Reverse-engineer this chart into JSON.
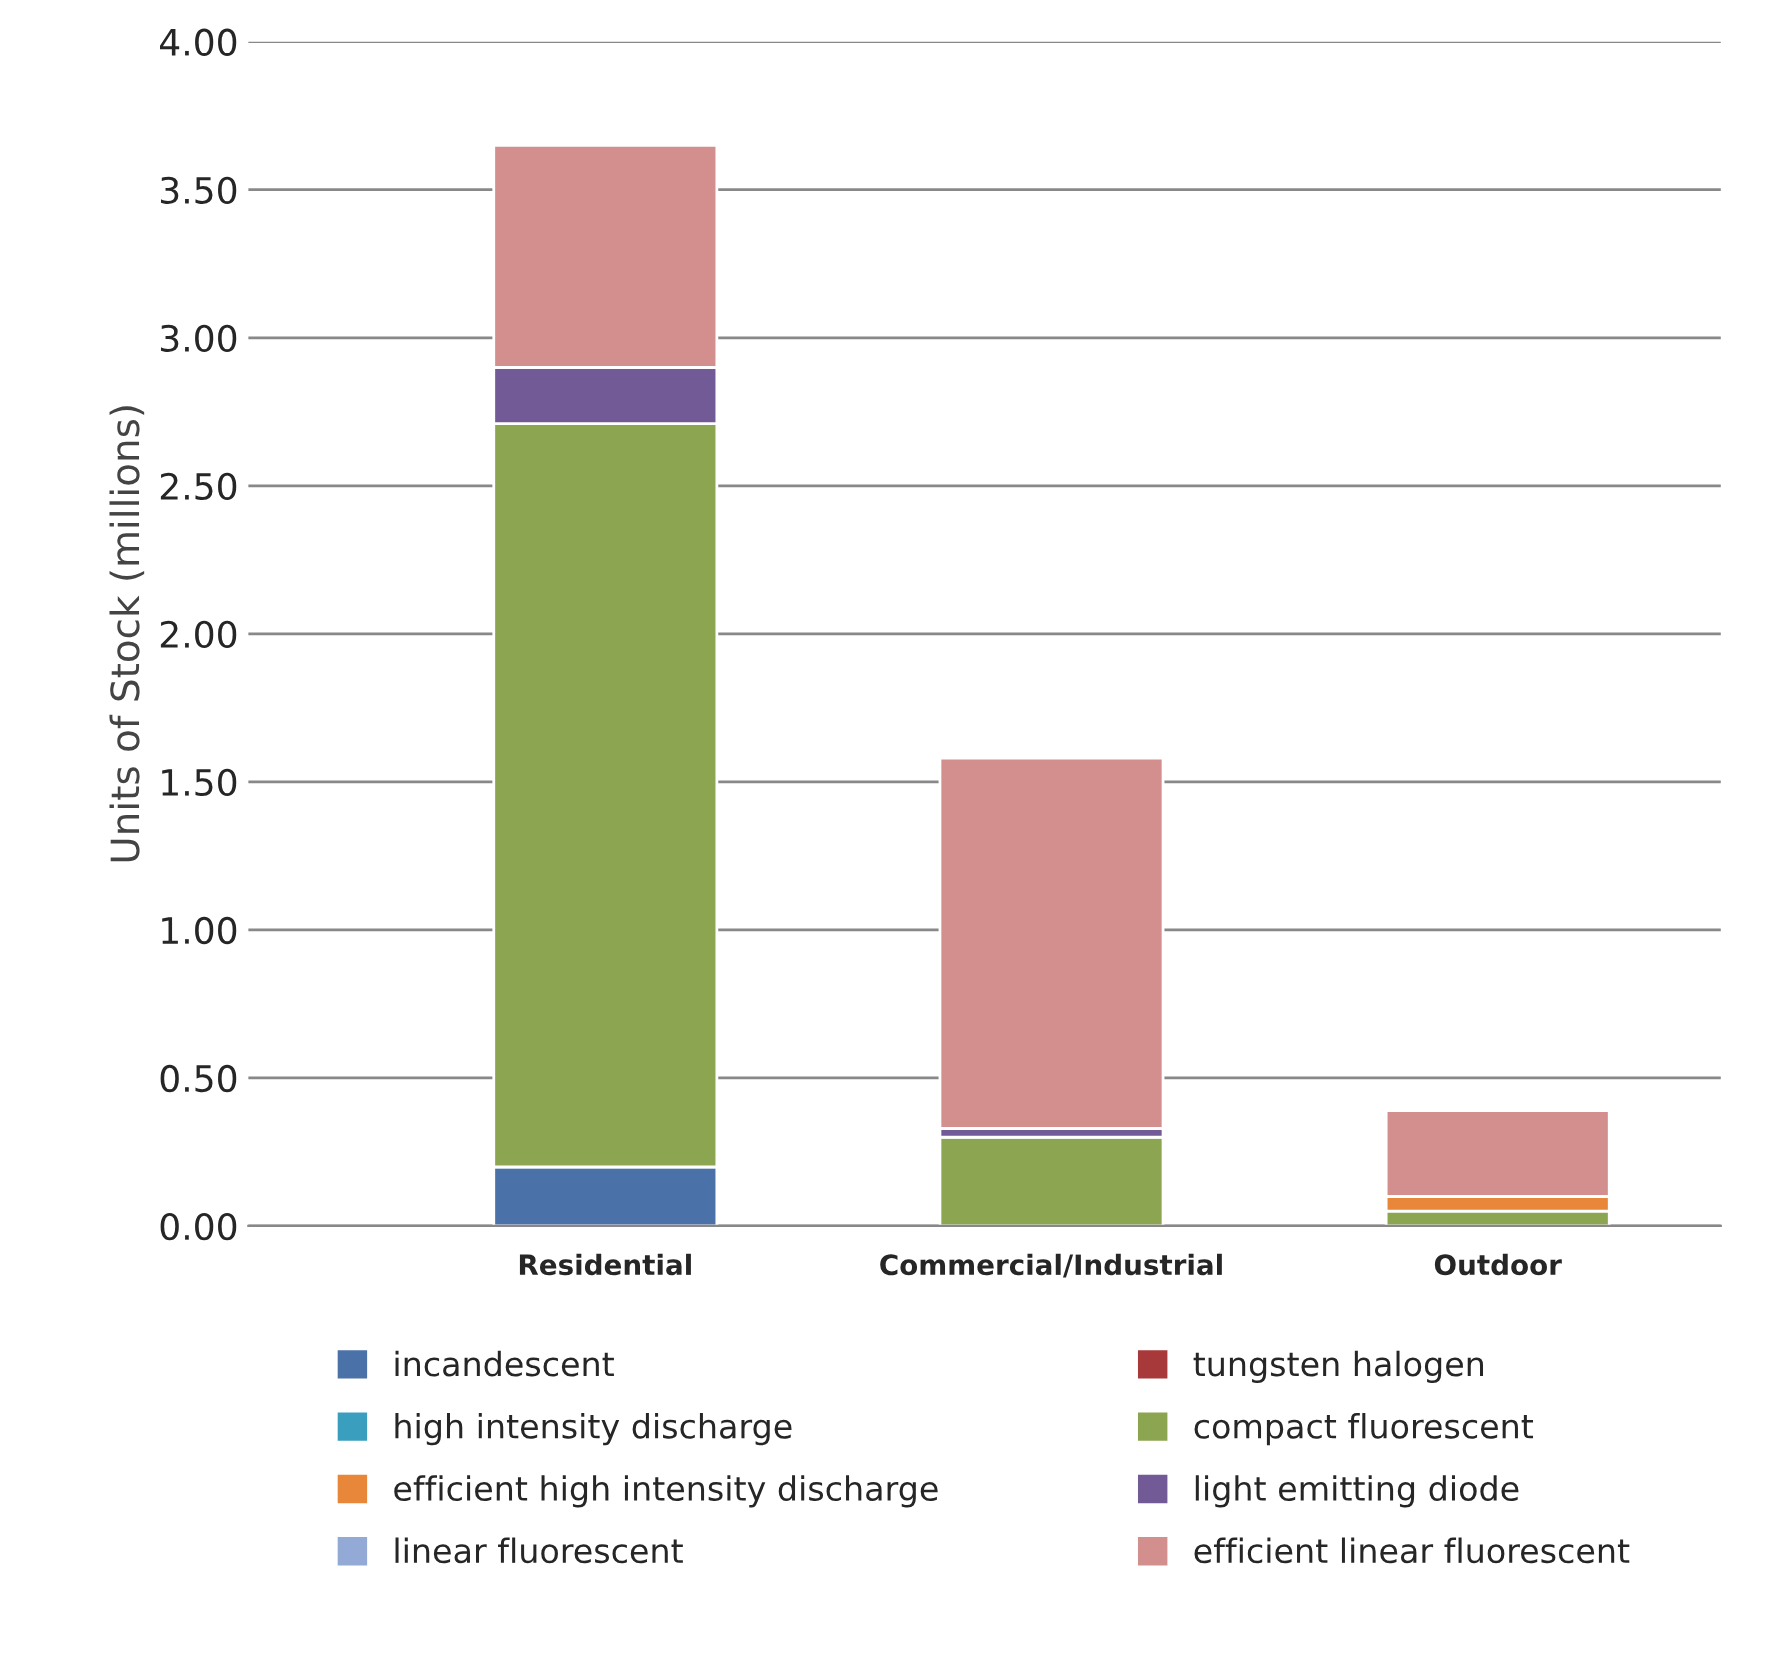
{
  "chart_data": {
    "type": "bar",
    "stacked": true,
    "ylabel": "Units of Stock (millions)",
    "categories": [
      "Residential",
      "Commercial/Industrial",
      "Outdoor"
    ],
    "series": [
      {
        "name": "incandescent",
        "color": "#4a72a8",
        "values": [
          0.2,
          0,
          0
        ]
      },
      {
        "name": "tungsten halogen",
        "color": "#a8393a",
        "values": [
          0,
          0,
          0
        ]
      },
      {
        "name": "high intensity discharge",
        "color": "#3a9fbf",
        "values": [
          0,
          0,
          0
        ]
      },
      {
        "name": "compact fluorescent",
        "color": "#8ca550",
        "values": [
          2.51,
          0.3,
          0.05
        ]
      },
      {
        "name": "efficient high intensity discharge",
        "color": "#e8873a",
        "values": [
          0,
          0,
          0.05
        ]
      },
      {
        "name": "light emitting diode",
        "color": "#725a96",
        "values": [
          0.19,
          0.03,
          0
        ]
      },
      {
        "name": "linear fluorescent",
        "color": "#93aad6",
        "values": [
          0,
          0,
          0
        ]
      },
      {
        "name": "efficient linear fluorescent",
        "color": "#d28f8e",
        "values": [
          0.75,
          1.25,
          0.29
        ]
      }
    ],
    "ylim": [
      0,
      4
    ],
    "yticks": [
      {
        "value": 0,
        "label": "0.00"
      },
      {
        "value": 0.5,
        "label": "0.50"
      },
      {
        "value": 1,
        "label": "1.00"
      },
      {
        "value": 1.5,
        "label": "1.50"
      },
      {
        "value": 2,
        "label": "2.00"
      },
      {
        "value": 2.5,
        "label": "2.50"
      },
      {
        "value": 3,
        "label": "3.00"
      },
      {
        "value": 3.5,
        "label": "3.50"
      },
      {
        "value": 4,
        "label": "4.00"
      }
    ],
    "grid": "y",
    "legend": "bottom"
  }
}
